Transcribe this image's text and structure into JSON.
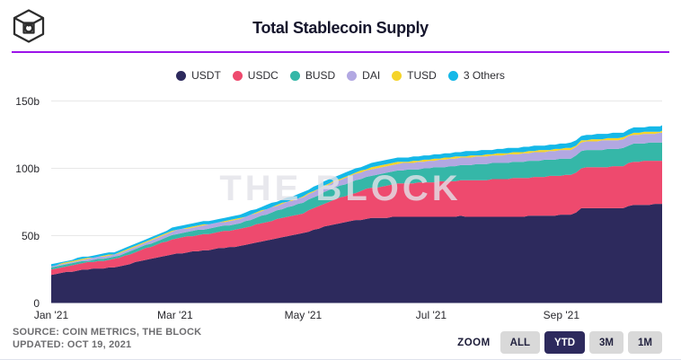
{
  "header": {
    "title": "Total Stablecoin Supply",
    "logo_icon": "the-block-cube-logo"
  },
  "watermark": "THE BLOCK",
  "colors": {
    "accent_rule": "#9c13e9",
    "button_bg": "#d9d9d9",
    "active_button_bg": "#2d2a5d",
    "gridline": "#e8e8e8"
  },
  "chart_data": {
    "type": "area",
    "stacked": true,
    "title": "Total Stablecoin Supply",
    "xlabel": "",
    "ylabel": "",
    "x_unit": "days since Jan 1 2021",
    "x": [
      0,
      14,
      31,
      45,
      59,
      73,
      90,
      104,
      120,
      134,
      151,
      165,
      181,
      195,
      212,
      226,
      243,
      249,
      252,
      273,
      276,
      291
    ],
    "series": [
      {
        "name": "USDT",
        "color": "#2d2a5d",
        "values": [
          21.0,
          24.5,
          26.5,
          32.0,
          36.5,
          39.0,
          42.5,
          47.0,
          52.0,
          58.5,
          62.7,
          64.0,
          64.3,
          64.4,
          64.3,
          64.4,
          65.3,
          65.5,
          70.0,
          70.3,
          73.0,
          73.3
        ]
      },
      {
        "name": "USDC",
        "color": "#ee4a6e",
        "values": [
          4.0,
          5.0,
          6.2,
          8.5,
          11.5,
          12.0,
          12.5,
          13.8,
          14.8,
          18.0,
          22.2,
          24.5,
          25.5,
          26.5,
          27.5,
          28.5,
          29.5,
          29.8,
          30.2,
          31.5,
          31.8,
          32.6
        ]
      },
      {
        "name": "BUSD",
        "color": "#35b7a8",
        "values": [
          1.0,
          1.3,
          1.8,
          2.4,
          3.3,
          3.8,
          4.3,
          6.0,
          7.8,
          8.5,
          9.2,
          9.8,
          10.4,
          11.3,
          12.1,
          12.2,
          12.3,
          12.4,
          12.7,
          13.2,
          13.3,
          13.4
        ]
      },
      {
        "name": "DAI",
        "color": "#b2a8e2",
        "values": [
          1.1,
          1.3,
          1.7,
          2.2,
          2.6,
          2.9,
          3.2,
          3.6,
          4.2,
          4.5,
          4.9,
          5.1,
          5.3,
          5.5,
          5.7,
          6.0,
          6.3,
          6.4,
          6.4,
          6.5,
          6.6,
          6.9
        ]
      },
      {
        "name": "TUSD",
        "color": "#f5d42a",
        "values": [
          0.3,
          0.35,
          0.4,
          0.45,
          0.5,
          0.45,
          0.4,
          0.45,
          0.5,
          0.8,
          1.0,
          1.05,
          1.1,
          1.15,
          1.2,
          1.25,
          1.3,
          1.3,
          1.35,
          1.4,
          1.45,
          1.5
        ]
      },
      {
        "name": "3 Others",
        "color": "#15b8e8",
        "values": [
          1.2,
          1.4,
          1.6,
          1.9,
          2.2,
          2.4,
          2.6,
          2.8,
          3.0,
          3.1,
          3.2,
          3.25,
          3.3,
          3.35,
          3.4,
          3.5,
          3.6,
          3.6,
          3.65,
          3.8,
          3.85,
          4.0
        ]
      }
    ],
    "x_tick_labels": [
      {
        "label": "Jan '21",
        "day": 0
      },
      {
        "label": "Mar '21",
        "day": 59
      },
      {
        "label": "May '21",
        "day": 120
      },
      {
        "label": "Jul '21",
        "day": 181
      },
      {
        "label": "Sep '21",
        "day": 243
      }
    ],
    "y_ticks": [
      {
        "label": "0",
        "value": 0
      },
      {
        "label": "50b",
        "value": 50
      },
      {
        "label": "100b",
        "value": 100
      },
      {
        "label": "150b",
        "value": 150
      }
    ],
    "ylim": [
      0,
      158
    ],
    "grid": true,
    "legend_position": "top"
  },
  "footer": {
    "source_line1": "SOURCE: COIN METRICS, THE BLOCK",
    "source_line2": "UPDATED: OCT 19, 2021",
    "zoom_label": "ZOOM",
    "zoom_buttons": [
      {
        "label": "ALL",
        "active": false
      },
      {
        "label": "YTD",
        "active": true
      },
      {
        "label": "3M",
        "active": false
      },
      {
        "label": "1M",
        "active": false
      }
    ]
  }
}
